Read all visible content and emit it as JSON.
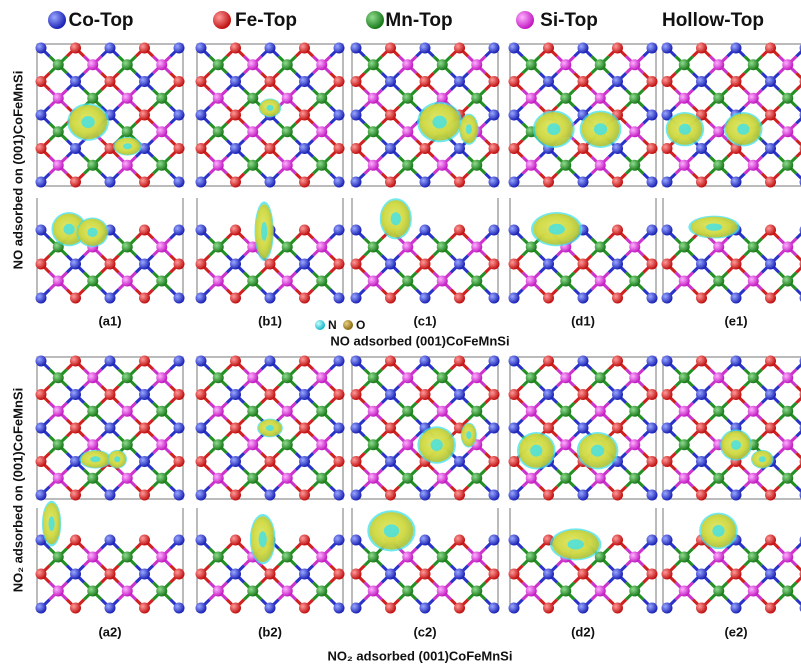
{
  "columns": [
    "Co-Top",
    "Fe-Top",
    "Mn-Top",
    "Si-Top",
    "Hollow-Top"
  ],
  "rows": [
    {
      "side_label": "NO adsorbed on (001)CoFeMnSi",
      "panels": [
        "(a1)",
        "(b1)",
        "(c1)",
        "(d1)",
        "(e1)"
      ],
      "caption": "NO adsorbed (001)CoFeMnSi"
    },
    {
      "side_label": "NO₂ adsorbed on (001)CoFeMnSi",
      "panels": [
        "(a2)",
        "(b2)",
        "(c2)",
        "(d2)",
        "(e2)"
      ],
      "caption": "NO₂ adsorbed (001)CoFeMnSi"
    }
  ],
  "legend": [
    "N",
    "O"
  ]
}
